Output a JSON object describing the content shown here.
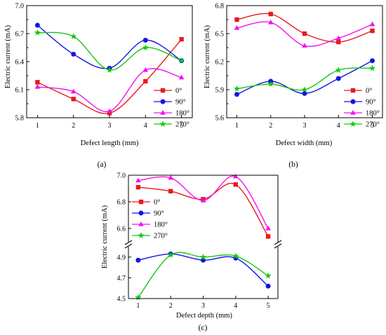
{
  "figure": {
    "panel_labels": [
      "(a)",
      "(b)",
      "(c)"
    ]
  },
  "legend": {
    "entries": [
      {
        "name": "0°",
        "color": "#e8191b",
        "marker": "square"
      },
      {
        "name": "90°",
        "color": "#1414e6",
        "marker": "circle"
      },
      {
        "name": "180°",
        "color": "#f012f0",
        "marker": "triangle"
      },
      {
        "name": "270°",
        "color": "#14c814",
        "marker": "star"
      }
    ]
  },
  "chart_data": [
    {
      "type": "line",
      "panel": "(a)",
      "xlabel": "Defect length (mm)",
      "ylabel": "Electric current (mA)",
      "categories": [
        1,
        2,
        3,
        4,
        5
      ],
      "xlim": [
        0.7,
        5.3
      ],
      "ylim": [
        5.8,
        7.0
      ],
      "yticks": [
        "5.8",
        "6.1",
        "6.4",
        "6.7",
        "7.0"
      ],
      "legend_position": "right-center",
      "series": [
        {
          "name": "0°",
          "values": [
            6.18,
            6.0,
            5.85,
            6.19,
            6.64
          ]
        },
        {
          "name": "90°",
          "values": [
            6.79,
            6.48,
            6.33,
            6.63,
            6.41
          ]
        },
        {
          "name": "180°",
          "values": [
            6.13,
            6.08,
            5.87,
            6.31,
            6.23
          ]
        },
        {
          "name": "270°",
          "values": [
            6.71,
            6.67,
            6.31,
            6.55,
            6.41
          ]
        }
      ]
    },
    {
      "type": "line",
      "panel": "(b)",
      "xlabel": "Defect width (mm)",
      "ylabel": "Electric current (mA)",
      "categories": [
        1,
        2,
        3,
        4,
        5
      ],
      "xlim": [
        0.7,
        5.3
      ],
      "ylim": [
        5.6,
        6.8
      ],
      "yticks": [
        "5.6",
        "5.9",
        "6.2",
        "6.5",
        "6.8"
      ],
      "legend_position": "right-center",
      "series": [
        {
          "name": "0°",
          "values": [
            6.65,
            6.71,
            6.5,
            6.41,
            6.53
          ]
        },
        {
          "name": "90°",
          "values": [
            5.85,
            5.99,
            5.86,
            6.02,
            6.21
          ]
        },
        {
          "name": "180°",
          "values": [
            6.56,
            6.62,
            6.37,
            6.45,
            6.6
          ]
        },
        {
          "name": "270°",
          "values": [
            5.91,
            5.96,
            5.9,
            6.11,
            6.13
          ]
        }
      ]
    },
    {
      "type": "line",
      "panel": "(c)",
      "xlabel": "Defect depth (mm)",
      "ylabel": "Electric current (mA)",
      "categories": [
        1,
        2,
        3,
        4,
        5
      ],
      "xlim": [
        0.7,
        5.3
      ],
      "broken_axis": true,
      "upper_ylim": [
        6.5,
        7.0
      ],
      "upper_yticks": [
        "6.6",
        "6.8",
        "7.0"
      ],
      "lower_ylim": [
        4.5,
        5.0
      ],
      "lower_yticks": [
        "4.5",
        "4.7",
        "4.9"
      ],
      "legend_position": "left",
      "series": [
        {
          "name": "0°",
          "values": [
            6.91,
            6.88,
            6.82,
            6.93,
            6.54
          ]
        },
        {
          "name": "90°",
          "values": [
            4.87,
            4.93,
            4.87,
            4.89,
            4.62
          ]
        },
        {
          "name": "180°",
          "values": [
            6.96,
            6.98,
            6.81,
            6.99,
            6.6
          ]
        },
        {
          "name": "270°",
          "values": [
            4.51,
            4.92,
            4.9,
            4.91,
            4.72
          ]
        }
      ]
    }
  ]
}
